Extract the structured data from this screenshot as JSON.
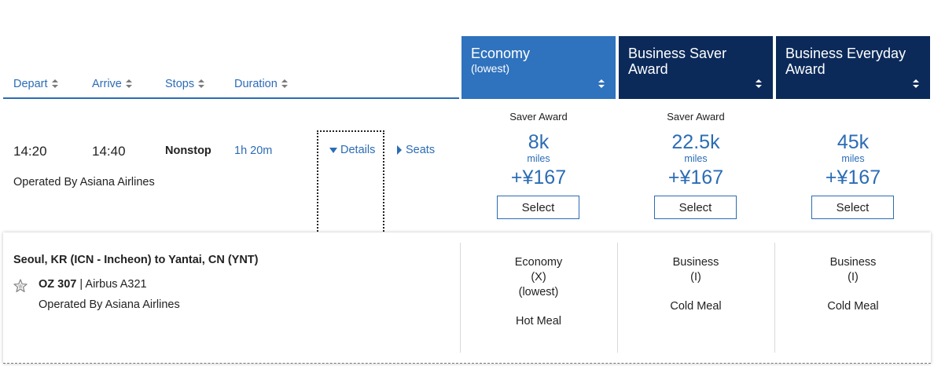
{
  "sort_headers": [
    {
      "label": "Depart"
    },
    {
      "label": "Arrive"
    },
    {
      "label": "Stops"
    },
    {
      "label": "Duration"
    }
  ],
  "fare_columns": [
    {
      "title": "Economy",
      "subtitle": "(lowest)"
    },
    {
      "title": "Business Saver",
      "subtitle": "Award"
    },
    {
      "title": "Business Everyday",
      "subtitle": "Award"
    }
  ],
  "flight": {
    "depart": "14:20",
    "arrive": "14:40",
    "stops": "Nonstop",
    "duration": "1h 20m",
    "operated_by": "Operated By Asiana Airlines",
    "details_label": "Details",
    "seats_label": "Seats"
  },
  "fares": [
    {
      "type": "Saver Award",
      "miles": "8k",
      "unit": "miles",
      "price": "+¥167",
      "button": "Select"
    },
    {
      "type": "Saver Award",
      "miles": "22.5k",
      "unit": "miles",
      "price": "+¥167",
      "button": "Select"
    },
    {
      "type": "",
      "miles": "45k",
      "unit": "miles",
      "price": "+¥167",
      "button": "Select"
    }
  ],
  "details": {
    "route": "Seoul, KR (ICN - Incheon) to Yantai, CN (YNT)",
    "flight_number": "OZ 307",
    "separator": "|",
    "aircraft": "Airbus A321",
    "operated_by": "Operated By Asiana Airlines",
    "cabins": [
      {
        "cabin": "Economy",
        "code": "(X)",
        "note": "(lowest)",
        "meal": "Hot Meal"
      },
      {
        "cabin": "Business",
        "code": "(I)",
        "note": "",
        "meal": "Cold Meal"
      },
      {
        "cabin": "Business",
        "code": "(I)",
        "note": "",
        "meal": "Cold Meal"
      }
    ]
  },
  "colors": {
    "link_blue": "#2b6cb5",
    "economy_header": "#2f72bd",
    "business_header": "#0b2a5a"
  }
}
